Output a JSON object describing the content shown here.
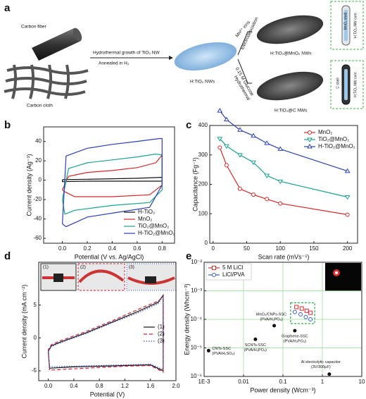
{
  "panel_labels": [
    "a",
    "b",
    "c",
    "d",
    "e"
  ],
  "schematic": {
    "carbon_fiber": "Carbon fiber",
    "carbon_cloth": "Carbon cloth",
    "step1_top": "Hydrothermal growth of TiO₂ NW",
    "step1_bottom": "Annealed in H₂",
    "intermediate": "H:TiO₂ NWs",
    "route1_top": "Mn²⁺ ions",
    "route1_bottom": "Electrodeposition",
    "route2_top": "0.15 M Glucose",
    "route2_bottom": "Hydrothermal",
    "product1": "H:TiO₂@MnO₂ NWs",
    "product2": "H:TiO₂@C NWs",
    "shell1": "MnO₂ shell",
    "core1": "H:TiO₂ NW core",
    "shell2": "C shell",
    "core2": "H:TiO₂ NW core"
  },
  "chart_data": [
    {
      "type": "line",
      "xlabel": "Potential (V vs. Ag/AgCl)",
      "ylabel": "Current density (Ag⁻¹)",
      "xlim": [
        -0.15,
        0.9
      ],
      "ylim": [
        -65,
        55
      ],
      "xticks": [
        {
          "value": 0,
          "label": "0.0"
        },
        0.2,
        0.4,
        0.6,
        0.8
      ],
      "yticks": [
        -60,
        -40,
        -20,
        0,
        20,
        40
      ],
      "legend": "lower right",
      "series": [
        {
          "name": "H-TiO₂",
          "color": "#111111",
          "x": [
            0,
            0.2,
            0.4,
            0.6,
            0.8,
            0.8,
            0.6,
            0.4,
            0.2,
            0,
            0
          ],
          "values": [
            0.5,
            1,
            1.5,
            2,
            3,
            -1,
            -1,
            -1,
            -1,
            -1.5,
            0.5
          ]
        },
        {
          "name": "MnO₂",
          "color": "#d62728",
          "x": [
            0,
            0.05,
            0.2,
            0.4,
            0.6,
            0.75,
            0.8,
            0.8,
            0.7,
            0.4,
            0.1,
            0.02,
            0
          ],
          "values": [
            -10,
            4,
            8,
            10,
            13,
            18,
            26,
            -5,
            -15,
            -17,
            -17,
            -12,
            -10
          ]
        },
        {
          "name": "TiO₂@MnO₂",
          "color": "#1aa38f",
          "x": [
            0,
            0.05,
            0.2,
            0.4,
            0.6,
            0.75,
            0.8,
            0.8,
            0.7,
            0.4,
            0.1,
            0.02,
            0
          ],
          "values": [
            -20,
            12,
            18,
            21,
            24,
            27,
            26,
            -10,
            -23,
            -26,
            -31,
            -35,
            -20
          ]
        },
        {
          "name": "H-TiO₂@MnO₂",
          "color": "#2b3fb8",
          "x": [
            0,
            0.03,
            0.2,
            0.4,
            0.6,
            0.78,
            0.8,
            0.8,
            0.7,
            0.4,
            0.2,
            0.03,
            0
          ],
          "values": [
            -45,
            25,
            33,
            37,
            40,
            43,
            43,
            -5,
            -28,
            -34,
            -38,
            -48,
            -45
          ]
        }
      ]
    },
    {
      "type": "line",
      "xlabel": "Scan rate (mVs⁻¹)",
      "ylabel": "Capacitance (Fg⁻¹)",
      "xlim": [
        -5,
        215
      ],
      "ylim": [
        0,
        400
      ],
      "xticks": [
        0,
        50,
        100,
        150,
        200
      ],
      "yticks": [
        0,
        100,
        200,
        300,
        400
      ],
      "legend": "upper right",
      "x": [
        10,
        20,
        40,
        60,
        80,
        100,
        200
      ],
      "series": [
        {
          "name": "MnO₂",
          "color": "#d62728",
          "marker": "circle",
          "values": [
            325,
            265,
            185,
            165,
            150,
            135,
            97
          ]
        },
        {
          "name": "TiO₂@MnO₂",
          "color": "#1aa38f",
          "marker": "triangle-down",
          "values": [
            355,
            330,
            300,
            275,
            230,
            210,
            157
          ]
        },
        {
          "name": "H-TiO₂@MnO₂",
          "color": "#2b3fb8",
          "marker": "triangle-up",
          "values": [
            450,
            420,
            385,
            365,
            340,
            320,
            245
          ]
        }
      ]
    },
    {
      "type": "line",
      "xlabel": "Potential (V)",
      "ylabel": "Current density (mA cm⁻²)",
      "xlim": [
        -0.15,
        2.0
      ],
      "ylim": [
        -6.5,
        11.5
      ],
      "xticks": [
        {
          "value": 0,
          "label": "0.0"
        },
        0.4,
        0.8,
        1.2,
        1.6,
        {
          "value": 2,
          "label": "2.0"
        }
      ],
      "yticks": [
        -5,
        0,
        5
      ],
      "legend": "right",
      "photo_labels": [
        "(1)",
        "(2)",
        "(3)"
      ],
      "series": [
        {
          "name": "(1)",
          "color": "#111111",
          "dash": "solid",
          "x": [
            0,
            0.02,
            0.4,
            0.8,
            1.2,
            1.6,
            1.8,
            1.8,
            1.72,
            1.4,
            1,
            0.6,
            0.2,
            0.05,
            0
          ],
          "values": [
            -2,
            -4.6,
            -4.4,
            -4.3,
            -4.2,
            -4.1,
            -5,
            6.5,
            5.4,
            4,
            2.4,
            0.8,
            -0.6,
            -1.2,
            -2
          ]
        },
        {
          "name": "(2)",
          "color": "#d0223a",
          "dash": "dashed",
          "x": [
            0,
            0.02,
            0.4,
            0.8,
            1.2,
            1.6,
            1.8,
            1.8,
            1.72,
            1.4,
            1,
            0.6,
            0.2,
            0.05,
            0
          ],
          "values": [
            -1.8,
            -4.9,
            -4.7,
            -4.5,
            -4.3,
            -4.2,
            -5.2,
            6.3,
            5.6,
            4.3,
            2.6,
            1,
            -0.4,
            -1,
            -1.8
          ]
        },
        {
          "name": "(3)",
          "color": "#3b4fc8",
          "dash": "dotted",
          "x": [
            0,
            0.02,
            0.4,
            0.8,
            1.2,
            1.6,
            1.8,
            1.8,
            1.72,
            1.4,
            1,
            0.6,
            0.2,
            0.05,
            0
          ],
          "values": [
            -2.1,
            -4.4,
            -4.3,
            -4.2,
            -4.1,
            -4,
            -4.8,
            6.4,
            5.2,
            3.8,
            2.3,
            0.7,
            -0.7,
            -1.3,
            -2.1
          ]
        }
      ]
    },
    {
      "type": "scatter",
      "xlabel": "Power density (Wcm⁻³)",
      "ylabel": "Energy density (Whcm⁻³)",
      "xscale": "log",
      "yscale": "log",
      "xlim": [
        0.001,
        10
      ],
      "ylim": [
        1e-06,
        0.01
      ],
      "xticks": [
        {
          "value": 0.001,
          "label": "1E-3"
        },
        0.01,
        0.1,
        1,
        10
      ],
      "yticks": [
        {
          "value": 1e-06,
          "label": "10⁻⁶"
        },
        {
          "value": 1e-05,
          "label": "10⁻⁵"
        },
        {
          "value": 0.0001,
          "label": "10⁻⁴"
        },
        {
          "value": 0.001,
          "label": "10⁻³"
        },
        {
          "value": 0.01,
          "label": "10⁻²"
        }
      ],
      "grid": true,
      "grid_color": "#8fdc8f",
      "legend": "upper left",
      "series": [
        {
          "name": "5 M LiCl",
          "color": "#e0282e",
          "marker": "square",
          "x": [
            0.22,
            0.3,
            0.4,
            0.5
          ],
          "values": [
            0.00027,
            0.00024,
            0.0002,
            0.00017
          ]
        },
        {
          "name": "LiCl/PVA",
          "color": "#3b5fd0",
          "marker": "circle",
          "x": [
            0.2,
            0.28,
            0.38,
            0.5
          ],
          "values": [
            0.00018,
            0.00015,
            0.00012,
            0.0001
          ]
        }
      ],
      "annotations": [
        {
          "text": [
            "CNTs-SSC",
            "(PVA/H₂SO₄)"
          ],
          "x": 0.0013,
          "y": 8e-06
        },
        {
          "text": [
            "SCNTs-SSC",
            "(PVA/H₃PO₄)"
          ],
          "x": 0.02,
          "y": 2e-05
        },
        {
          "text": [
            "MnO₂/CNPs-SSC",
            "(PVA/H₃PO₄)"
          ],
          "x": 0.06,
          "y": 6e-05
        },
        {
          "text": [
            "Graphene-SSC",
            "(PVA/H₃PO₄)"
          ],
          "x": 0.2,
          "y": 4e-05
        },
        {
          "text": [
            "Al electrolytic capacitor",
            "(3V/300μF)"
          ],
          "x": 1.5,
          "y": 1.2e-06
        }
      ]
    }
  ]
}
